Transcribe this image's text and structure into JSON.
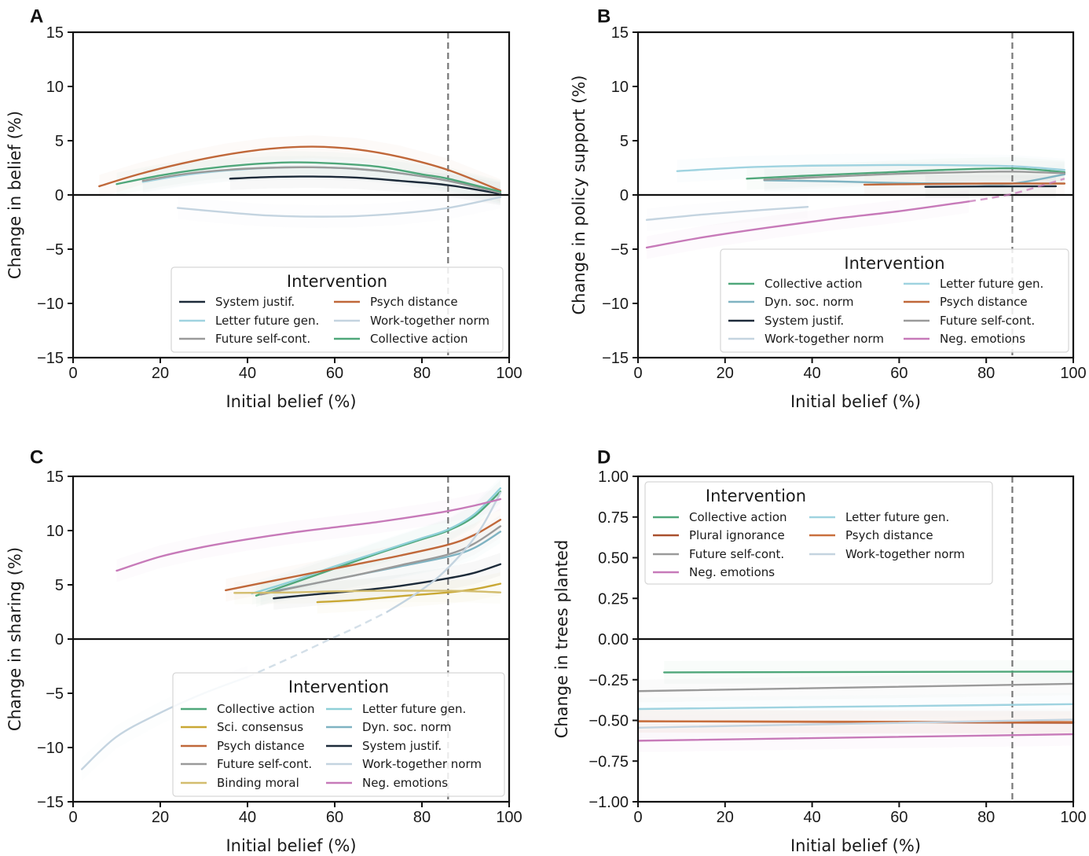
{
  "figure": {
    "reference_line_label": "vertical dashed reference at initial belief 86%"
  },
  "chart_data": [
    {
      "panel": "A",
      "type": "line",
      "xlabel": "Initial belief (%)",
      "ylabel": "Change in belief (%)",
      "xlim": [
        0,
        100
      ],
      "ylim": [
        -15,
        15
      ],
      "xticks": [
        0,
        20,
        40,
        60,
        80,
        100
      ],
      "yticks": [
        -15,
        -10,
        -5,
        0,
        5,
        10,
        15
      ],
      "ytick_labels": [
        "−15",
        "−10",
        "−5",
        "0",
        "5",
        "10",
        "15"
      ],
      "grid": false,
      "reference_x": 86,
      "zero_line": true,
      "legend": {
        "title": "Intervention",
        "placement": "lower-right",
        "columns": 2
      },
      "series": [
        {
          "name": "System justif.",
          "color": "#1d2b3a",
          "x": [
            36,
            45,
            55,
            65,
            75,
            86,
            98
          ],
          "y": [
            1.5,
            1.65,
            1.7,
            1.6,
            1.3,
            0.9,
            0.1
          ]
        },
        {
          "name": "Psych distance",
          "color": "#c0683a",
          "x": [
            6,
            15,
            25,
            35,
            45,
            55,
            65,
            75,
            86,
            98
          ],
          "y": [
            0.8,
            1.9,
            2.9,
            3.7,
            4.25,
            4.45,
            4.2,
            3.5,
            2.3,
            0.4
          ]
        },
        {
          "name": "Letter future gen.",
          "color": "#9fd3e0",
          "x": [
            16,
            25,
            35,
            45,
            55,
            65,
            75,
            86,
            98
          ],
          "y": [
            1.2,
            1.8,
            2.25,
            2.5,
            2.55,
            2.4,
            2.0,
            1.3,
            0.2
          ]
        },
        {
          "name": "Work-together norm",
          "color": "#c4d4e0",
          "x": [
            24,
            35,
            45,
            55,
            65,
            75,
            86,
            98
          ],
          "y": [
            -1.2,
            -1.6,
            -1.9,
            -2.0,
            -1.95,
            -1.7,
            -1.2,
            -0.2
          ]
        },
        {
          "name": "Future self-cont.",
          "color": "#9a9a9a",
          "x": [
            16,
            25,
            35,
            45,
            55,
            65,
            75,
            86,
            98
          ],
          "y": [
            1.3,
            1.9,
            2.3,
            2.5,
            2.55,
            2.4,
            2.0,
            1.3,
            0.2
          ]
        },
        {
          "name": "Collective action",
          "color": "#4fa77a",
          "x": [
            10,
            20,
            30,
            40,
            50,
            60,
            70,
            80,
            86,
            98
          ],
          "y": [
            1.0,
            1.8,
            2.4,
            2.8,
            3.0,
            2.9,
            2.6,
            1.9,
            1.5,
            0.3
          ]
        }
      ]
    },
    {
      "panel": "B",
      "type": "line",
      "xlabel": "Initial belief (%)",
      "ylabel": "Change in policy support (%)",
      "xlim": [
        0,
        100
      ],
      "ylim": [
        -15,
        15
      ],
      "xticks": [
        0,
        20,
        40,
        60,
        80,
        100
      ],
      "yticks": [
        -15,
        -10,
        -5,
        0,
        5,
        10,
        15
      ],
      "ytick_labels": [
        "−15",
        "−10",
        "−5",
        "0",
        "5",
        "10",
        "15"
      ],
      "grid": false,
      "reference_x": 86,
      "zero_line": true,
      "legend": {
        "title": "Intervention",
        "placement": "lower-right",
        "columns": 2
      },
      "series": [
        {
          "name": "Collective action",
          "color": "#4fa77a",
          "x": [
            25,
            40,
            55,
            70,
            86,
            98
          ],
          "y": [
            1.5,
            1.8,
            2.05,
            2.3,
            2.45,
            2.1
          ]
        },
        {
          "name": "Letter future gen.",
          "color": "#9fd3e0",
          "x": [
            9,
            25,
            40,
            55,
            70,
            86,
            98
          ],
          "y": [
            2.2,
            2.55,
            2.7,
            2.75,
            2.75,
            2.65,
            2.3
          ]
        },
        {
          "name": "Dyn. soc. norm",
          "color": "#7fb3c2",
          "x": [
            29,
            45,
            60,
            75,
            86,
            98
          ],
          "y": [
            1.35,
            1.25,
            1.1,
            1.05,
            1.05,
            1.9
          ]
        },
        {
          "name": "Psych distance",
          "color": "#c0683a",
          "x": [
            52,
            65,
            80,
            98
          ],
          "y": [
            0.95,
            1.0,
            1.05,
            1.05
          ]
        },
        {
          "name": "System justif.",
          "color": "#1d2b3a",
          "x": [
            66,
            80,
            96
          ],
          "y": [
            0.75,
            0.78,
            0.8
          ]
        },
        {
          "name": "Future self-cont.",
          "color": "#9a9a9a",
          "x": [
            29,
            45,
            60,
            75,
            86,
            98
          ],
          "y": [
            1.4,
            1.7,
            1.95,
            2.1,
            2.15,
            2.0
          ]
        },
        {
          "name": "Work-together norm",
          "color": "#c4d4e0",
          "x": [
            2,
            15,
            28,
            39
          ],
          "y": [
            -2.3,
            -1.8,
            -1.4,
            -1.1
          ]
        },
        {
          "name": "Neg. emotions",
          "color": "#c77ab9",
          "x": [
            2,
            15,
            30,
            45,
            60,
            76
          ],
          "y": [
            -4.85,
            -3.9,
            -3.0,
            -2.2,
            -1.5,
            -0.6
          ],
          "dashed_continuation": {
            "x": [
              76,
              86,
              98
            ],
            "y": [
              -0.6,
              0.1,
              1.5
            ]
          }
        }
      ]
    },
    {
      "panel": "C",
      "type": "line",
      "xlabel": "Initial belief (%)",
      "ylabel": "Change in sharing (%)",
      "xlim": [
        0,
        100
      ],
      "ylim": [
        -15,
        15
      ],
      "xticks": [
        0,
        20,
        40,
        60,
        80,
        100
      ],
      "yticks": [
        -15,
        -10,
        -5,
        0,
        5,
        10,
        15
      ],
      "ytick_labels": [
        "−15",
        "−10",
        "−5",
        "0",
        "5",
        "10",
        "15"
      ],
      "grid": false,
      "reference_x": 86,
      "zero_line": true,
      "legend": {
        "title": "Intervention",
        "placement": "lower-right",
        "columns": 2
      },
      "series": [
        {
          "name": "Collective action",
          "color": "#4fa77a",
          "x": [
            42,
            50,
            60,
            70,
            80,
            86,
            92,
            98
          ],
          "y": [
            4.0,
            5.1,
            6.5,
            7.9,
            9.2,
            10.0,
            11.3,
            13.6
          ]
        },
        {
          "name": "Letter future gen.",
          "color": "#8fd0d8",
          "x": [
            41,
            50,
            60,
            70,
            80,
            86,
            92,
            98
          ],
          "y": [
            4.2,
            5.3,
            6.7,
            8.0,
            9.3,
            10.1,
            11.5,
            13.9
          ]
        },
        {
          "name": "Sci. consensus",
          "color": "#c9a835",
          "x": [
            56,
            65,
            75,
            86,
            92,
            98
          ],
          "y": [
            3.4,
            3.6,
            3.95,
            4.3,
            4.6,
            5.1
          ]
        },
        {
          "name": "Dyn. soc. norm",
          "color": "#7fb3c2",
          "x": [
            43,
            55,
            65,
            75,
            86,
            92,
            98
          ],
          "y": [
            4.2,
            5.1,
            5.9,
            6.7,
            7.6,
            8.4,
            9.9
          ]
        },
        {
          "name": "Psych distance",
          "color": "#c0683a",
          "x": [
            35,
            45,
            55,
            65,
            75,
            86,
            92,
            98
          ],
          "y": [
            4.5,
            5.3,
            6.1,
            6.9,
            7.7,
            8.7,
            9.6,
            11.0
          ]
        },
        {
          "name": "System justif.",
          "color": "#1d2b3a",
          "x": [
            46,
            55,
            65,
            75,
            86,
            92,
            98
          ],
          "y": [
            3.75,
            4.1,
            4.45,
            4.9,
            5.6,
            6.1,
            6.9
          ]
        },
        {
          "name": "Future self-cont.",
          "color": "#9a9a9a",
          "x": [
            43,
            55,
            65,
            75,
            86,
            92,
            98
          ],
          "y": [
            4.1,
            5.1,
            5.9,
            6.8,
            7.8,
            8.8,
            10.4
          ]
        },
        {
          "name": "Work-together norm",
          "color": "#c4d4e0",
          "x": [
            2,
            10,
            20,
            30,
            40
          ],
          "y": [
            -12.0,
            -9.0,
            -6.8,
            -5.0,
            -3.5
          ],
          "dashed_continuation": {
            "x": [
              40,
              50,
              59,
              65,
              72
            ],
            "y": [
              -3.5,
              -1.7,
              0.0,
              1.1,
              2.5
            ]
          },
          "solid_continuation": {
            "x": [
              72,
              78,
              84,
              90,
              94,
              98
            ],
            "y": [
              2.5,
              4.0,
              5.8,
              8.3,
              10.5,
              13.5
            ]
          }
        },
        {
          "name": "Binding moral",
          "color": "#d3bd6e",
          "x": [
            37,
            50,
            60,
            70,
            80,
            86,
            92,
            98
          ],
          "y": [
            4.25,
            4.3,
            4.4,
            4.45,
            4.45,
            4.45,
            4.4,
            4.3
          ]
        },
        {
          "name": "Neg. emotions",
          "color": "#c77ab9",
          "x": [
            10,
            20,
            30,
            40,
            50,
            60,
            70,
            80,
            86,
            92,
            98
          ],
          "y": [
            6.3,
            7.6,
            8.5,
            9.2,
            9.8,
            10.3,
            10.8,
            11.4,
            11.8,
            12.3,
            12.9
          ]
        }
      ]
    },
    {
      "panel": "D",
      "type": "line",
      "xlabel": "Initial belief (%)",
      "ylabel": "Change in trees planted",
      "xlim": [
        0,
        100
      ],
      "ylim": [
        -1.0,
        1.0
      ],
      "xticks": [
        0,
        20,
        40,
        60,
        80,
        100
      ],
      "yticks": [
        -1.0,
        -0.75,
        -0.5,
        -0.25,
        0.0,
        0.25,
        0.5,
        0.75,
        1.0
      ],
      "ytick_labels": [
        "−1.00",
        "−0.75",
        "−0.50",
        "−0.25",
        "0.00",
        "0.25",
        "0.50",
        "0.75",
        "1.00"
      ],
      "grid": false,
      "reference_x": 86,
      "zero_line": true,
      "legend": {
        "title": "Intervention",
        "placement": "upper-left",
        "columns": 2
      },
      "series": [
        {
          "name": "Collective action",
          "color": "#4fa77a",
          "x": [
            6,
            100
          ],
          "y": [
            -0.205,
            -0.2
          ]
        },
        {
          "name": "Letter future gen.",
          "color": "#9fd3e0",
          "x": [
            0,
            100
          ],
          "y": [
            -0.43,
            -0.4
          ]
        },
        {
          "name": "Plural ignorance",
          "color": "#a9502e",
          "x": [
            0,
            100
          ],
          "y": [
            -0.505,
            -0.515
          ]
        },
        {
          "name": "Psych distance",
          "color": "#c9703e",
          "x": [
            0,
            100
          ],
          "y": [
            -0.505,
            -0.51
          ]
        },
        {
          "name": "Future self-cont.",
          "color": "#9a9a9a",
          "x": [
            0,
            100
          ],
          "y": [
            -0.32,
            -0.275
          ]
        },
        {
          "name": "Work-together norm",
          "color": "#c4d4e0",
          "x": [
            0,
            100
          ],
          "y": [
            -0.545,
            -0.495
          ]
        },
        {
          "name": "Neg. emotions",
          "color": "#c77ab9",
          "x": [
            0,
            100
          ],
          "y": [
            -0.625,
            -0.585
          ]
        }
      ]
    }
  ]
}
